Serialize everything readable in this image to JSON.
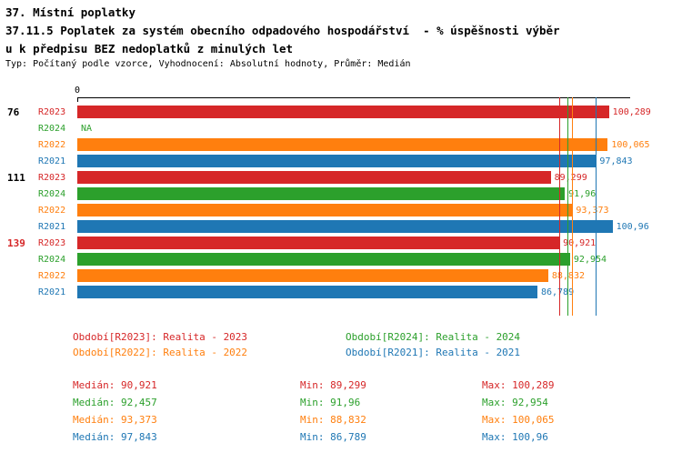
{
  "page": {
    "title_line1": "37. Místní poplatky",
    "title_line2": "37.11.5 Poplatek za systém obecního odpadového hospodářství  - % úspěšnosti výběr",
    "title_line3": "u k předpisu BEZ nedoplatků z minulých let",
    "subtitle": "Typ: Počítaný podle vzorce, Vyhodnocení: Absolutní hodnoty, Průměr: Medián"
  },
  "colors": {
    "R2023": "#d62728",
    "R2024": "#2ca02c",
    "R2022": "#ff7f0e",
    "R2021": "#1f77b4",
    "group_alert": "#d62728",
    "group_normal": "#000000"
  },
  "chart_data": {
    "type": "bar",
    "orientation": "horizontal",
    "unit": "percent",
    "x_axis": {
      "zero_label": "0",
      "min": 0,
      "max_shown_value": 100.96
    },
    "grid": false,
    "groups": [
      {
        "label": "76",
        "alert": false,
        "bars": [
          {
            "series": "R2023",
            "value": 100.289,
            "display": "100,289"
          },
          {
            "series": "R2024",
            "value": null,
            "display": "NA"
          },
          {
            "series": "R2022",
            "value": 100.065,
            "display": "100,065"
          },
          {
            "series": "R2021",
            "value": 97.843,
            "display": "97,843"
          }
        ]
      },
      {
        "label": "111",
        "alert": false,
        "bars": [
          {
            "series": "R2023",
            "value": 89.299,
            "display": "89,299"
          },
          {
            "series": "R2024",
            "value": 91.96,
            "display": "91,96"
          },
          {
            "series": "R2022",
            "value": 93.373,
            "display": "93,373"
          },
          {
            "series": "R2021",
            "value": 100.96,
            "display": "100,96"
          }
        ]
      },
      {
        "label": "139",
        "alert": true,
        "bars": [
          {
            "series": "R2023",
            "value": 90.921,
            "display": "90,921"
          },
          {
            "series": "R2024",
            "value": 92.954,
            "display": "92,954"
          },
          {
            "series": "R2022",
            "value": 88.832,
            "display": "88,832"
          },
          {
            "series": "R2021",
            "value": 86.789,
            "display": "86,789"
          }
        ]
      }
    ],
    "median_lines": [
      {
        "series": "R2023",
        "value": 90.921
      },
      {
        "series": "R2024",
        "value": 92.457
      },
      {
        "series": "R2022",
        "value": 93.373
      },
      {
        "series": "R2021",
        "value": 97.843
      }
    ]
  },
  "legend": [
    {
      "series": "R2023",
      "text": "Období[R2023]: Realita - 2023"
    },
    {
      "series": "R2024",
      "text": "Období[R2024]: Realita - 2024"
    },
    {
      "series": "R2022",
      "text": "Období[R2022]: Realita - 2022"
    },
    {
      "series": "R2021",
      "text": "Období[R2021]: Realita - 2021"
    }
  ],
  "stats": [
    {
      "series": "R2023",
      "median": "Medián: 90,921",
      "min": "Min: 89,299",
      "max": "Max: 100,289"
    },
    {
      "series": "R2024",
      "median": "Medián: 92,457",
      "min": "Min: 91,96",
      "max": "Max: 92,954"
    },
    {
      "series": "R2022",
      "median": "Medián: 93,373",
      "min": "Min: 88,832",
      "max": "Max: 100,065"
    },
    {
      "series": "R2021",
      "median": "Medián: 97,843",
      "min": "Min: 86,789",
      "max": "Max: 100,96"
    }
  ]
}
